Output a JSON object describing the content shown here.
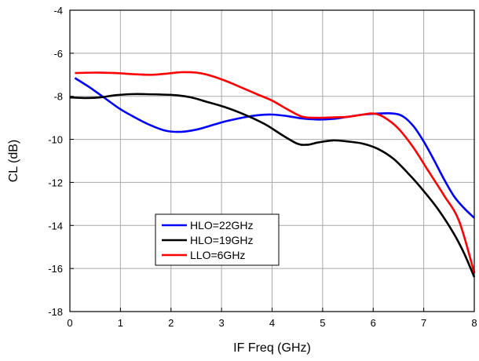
{
  "chart_data": {
    "type": "line",
    "title": "",
    "xlabel": "IF Freq (GHz)",
    "ylabel": "CL (dB)",
    "xlim": [
      0,
      8
    ],
    "ylim": [
      -18,
      -4
    ],
    "xticks": [
      0,
      1,
      2,
      3,
      4,
      5,
      6,
      7,
      8
    ],
    "yticks": [
      -18,
      -16,
      -14,
      -12,
      -10,
      -8,
      -6,
      -4
    ],
    "grid": true,
    "legend_position": "lower-left",
    "series": [
      {
        "name": "HLO=22GHz",
        "color": "#0000ff",
        "points": [
          [
            0.1,
            -7.15
          ],
          [
            0.4,
            -7.6
          ],
          [
            0.7,
            -8.1
          ],
          [
            1.0,
            -8.6
          ],
          [
            1.3,
            -9.0
          ],
          [
            1.6,
            -9.35
          ],
          [
            1.9,
            -9.6
          ],
          [
            2.2,
            -9.65
          ],
          [
            2.5,
            -9.55
          ],
          [
            2.8,
            -9.35
          ],
          [
            3.1,
            -9.15
          ],
          [
            3.4,
            -9.0
          ],
          [
            3.7,
            -8.88
          ],
          [
            4.0,
            -8.85
          ],
          [
            4.3,
            -8.92
          ],
          [
            4.6,
            -9.03
          ],
          [
            4.9,
            -9.08
          ],
          [
            5.2,
            -9.05
          ],
          [
            5.5,
            -8.95
          ],
          [
            5.8,
            -8.85
          ],
          [
            6.1,
            -8.8
          ],
          [
            6.4,
            -8.8
          ],
          [
            6.6,
            -8.95
          ],
          [
            6.8,
            -9.4
          ],
          [
            7.0,
            -10.1
          ],
          [
            7.2,
            -10.95
          ],
          [
            7.4,
            -11.85
          ],
          [
            7.6,
            -12.65
          ],
          [
            7.8,
            -13.2
          ],
          [
            8.0,
            -13.65
          ]
        ]
      },
      {
        "name": "HLO=19GHz",
        "color": "#000000",
        "points": [
          [
            0.0,
            -8.05
          ],
          [
            0.3,
            -8.08
          ],
          [
            0.6,
            -8.05
          ],
          [
            0.9,
            -7.95
          ],
          [
            1.2,
            -7.9
          ],
          [
            1.5,
            -7.9
          ],
          [
            1.8,
            -7.92
          ],
          [
            2.1,
            -7.95
          ],
          [
            2.4,
            -8.05
          ],
          [
            2.7,
            -8.25
          ],
          [
            3.0,
            -8.45
          ],
          [
            3.3,
            -8.7
          ],
          [
            3.6,
            -9.0
          ],
          [
            3.9,
            -9.35
          ],
          [
            4.2,
            -9.8
          ],
          [
            4.5,
            -10.2
          ],
          [
            4.7,
            -10.25
          ],
          [
            4.9,
            -10.15
          ],
          [
            5.2,
            -10.05
          ],
          [
            5.5,
            -10.1
          ],
          [
            5.8,
            -10.2
          ],
          [
            6.1,
            -10.45
          ],
          [
            6.4,
            -10.9
          ],
          [
            6.7,
            -11.6
          ],
          [
            7.0,
            -12.4
          ],
          [
            7.3,
            -13.3
          ],
          [
            7.6,
            -14.4
          ],
          [
            7.8,
            -15.3
          ],
          [
            8.0,
            -16.4
          ]
        ]
      },
      {
        "name": "LLO=6GHz",
        "color": "#ff0000",
        "points": [
          [
            0.1,
            -6.92
          ],
          [
            0.5,
            -6.9
          ],
          [
            0.9,
            -6.92
          ],
          [
            1.3,
            -6.98
          ],
          [
            1.6,
            -7.0
          ],
          [
            1.9,
            -6.95
          ],
          [
            2.2,
            -6.88
          ],
          [
            2.5,
            -6.9
          ],
          [
            2.8,
            -7.05
          ],
          [
            3.1,
            -7.3
          ],
          [
            3.4,
            -7.6
          ],
          [
            3.7,
            -7.9
          ],
          [
            4.0,
            -8.2
          ],
          [
            4.3,
            -8.6
          ],
          [
            4.6,
            -8.95
          ],
          [
            4.9,
            -9.0
          ],
          [
            5.2,
            -8.98
          ],
          [
            5.5,
            -8.95
          ],
          [
            5.8,
            -8.85
          ],
          [
            6.0,
            -8.8
          ],
          [
            6.2,
            -8.95
          ],
          [
            6.5,
            -9.5
          ],
          [
            6.8,
            -10.4
          ],
          [
            7.1,
            -11.5
          ],
          [
            7.4,
            -12.6
          ],
          [
            7.7,
            -13.8
          ],
          [
            8.0,
            -16.2
          ]
        ]
      }
    ]
  }
}
